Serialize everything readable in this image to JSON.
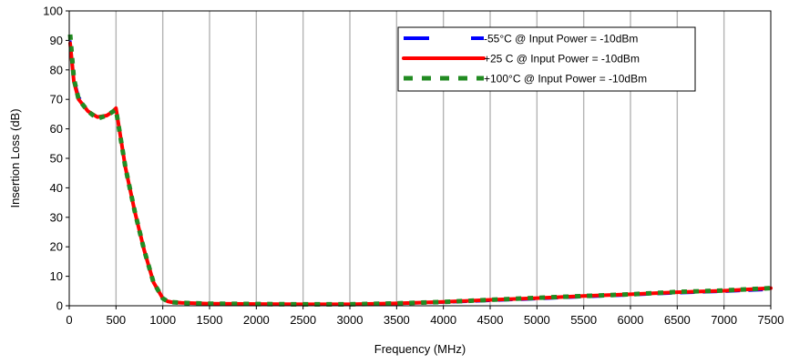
{
  "chart_data": {
    "type": "line",
    "title": "",
    "xlabel": "Frequency (MHz)",
    "ylabel": "Insertion Loss (dB)",
    "xlim": [
      0,
      7500
    ],
    "ylim": [
      0,
      100
    ],
    "x_ticks": [
      0,
      500,
      1000,
      1500,
      2000,
      2500,
      3000,
      3500,
      4000,
      4500,
      5000,
      5500,
      6000,
      6500,
      7000,
      7500
    ],
    "y_ticks": [
      0,
      10,
      20,
      30,
      40,
      50,
      60,
      70,
      80,
      90,
      100
    ],
    "grid": "vertical",
    "legend_position": "top-right",
    "series": [
      {
        "name": "-55°C @ Input Power = -10dBm",
        "color": "#0000ff",
        "style": "dashed-long",
        "x": [
          10,
          50,
          100,
          200,
          300,
          400,
          450,
          500,
          600,
          700,
          800,
          900,
          1000,
          1050,
          1100,
          1200,
          1500,
          2000,
          2500,
          3000,
          3500,
          4000,
          4500,
          5000,
          5500,
          6000,
          6500,
          7000,
          7500
        ],
        "y": [
          90,
          77,
          71,
          66,
          64,
          64.5,
          65.5,
          66.5,
          47,
          32,
          19,
          8,
          2.5,
          1.5,
          1.2,
          1,
          0.7,
          0.6,
          0.5,
          0.5,
          0.7,
          1.1,
          1.7,
          2.3,
          3,
          3.6,
          4.3,
          4.8,
          5.5
        ]
      },
      {
        "name": "+25 C @ Input Power = -10dBm",
        "color": "#ff0000",
        "style": "solid",
        "x": [
          10,
          50,
          100,
          200,
          300,
          400,
          450,
          500,
          600,
          700,
          800,
          900,
          1000,
          1050,
          1100,
          1200,
          1500,
          2000,
          2500,
          3000,
          3500,
          4000,
          4500,
          5000,
          5500,
          6000,
          6500,
          7000,
          7500
        ],
        "y": [
          89,
          76,
          70,
          66,
          64,
          64.5,
          65.5,
          67,
          47,
          32,
          19,
          8,
          2.5,
          1.5,
          1.2,
          1,
          0.7,
          0.6,
          0.5,
          0.5,
          0.8,
          1.3,
          2,
          2.6,
          3.3,
          3.9,
          4.6,
          5.1,
          6
        ]
      },
      {
        "name": "+100°C @ Input Power = -10dBm",
        "color": "#228b22",
        "style": "dashed-square",
        "x": [
          10,
          50,
          100,
          200,
          300,
          400,
          450,
          500,
          600,
          700,
          800,
          900,
          1000,
          1050,
          1100,
          1200,
          1500,
          2000,
          2500,
          3000,
          3500,
          4000,
          4500,
          5000,
          5500,
          6000,
          6500,
          7000,
          7500
        ],
        "y": [
          92,
          77,
          70,
          66,
          63.5,
          64.5,
          65.5,
          66.5,
          47,
          32,
          19,
          8,
          2.5,
          1.5,
          1.2,
          1,
          0.7,
          0.6,
          0.5,
          0.5,
          0.8,
          1.3,
          2,
          2.7,
          3.3,
          3.9,
          4.7,
          5.2,
          6
        ]
      }
    ]
  }
}
